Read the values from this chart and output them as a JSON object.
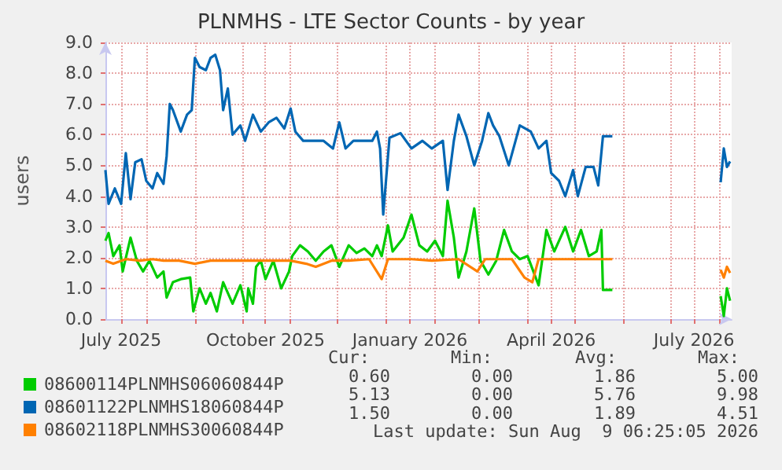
{
  "chart_data": {
    "type": "line",
    "title": "PLNMHS - LTE Sector Counts - by year",
    "ylabel": "users",
    "xlim": [
      "2025-07-06",
      "2026-08-09"
    ],
    "xticks": [
      {
        "value": "2025-08-01",
        "label": null
      },
      {
        "value": "2025-09-01",
        "label": null
      },
      {
        "value": "2025-10-01",
        "label": null
      },
      {
        "value": "2025-11-01",
        "label": null
      },
      {
        "value": "2025-12-01",
        "label": null
      },
      {
        "value": "2026-01-01",
        "label": null
      },
      {
        "value": "2026-02-01",
        "label": null
      },
      {
        "value": "2026-03-01",
        "label": null
      },
      {
        "value": "2026-04-01",
        "label": null
      },
      {
        "value": "2026-05-01",
        "label": null
      },
      {
        "value": "2026-06-01",
        "label": null
      },
      {
        "value": "2026-07-01",
        "label": null
      },
      {
        "value": "2026-08-01",
        "label": null
      },
      {
        "value": "2025-07-16",
        "label": "July 2025"
      },
      {
        "value": "2025-10-16",
        "label": "October 2025"
      },
      {
        "value": "2026-01-16",
        "label": "January 2026"
      },
      {
        "value": "2026-04-16",
        "label": "April 2026"
      },
      {
        "value": "2026-07-16",
        "label": "July 2026"
      }
    ],
    "ylim": [
      0,
      9
    ],
    "yticks": [
      {
        "value": 0,
        "label": "0.0"
      },
      {
        "value": 1,
        "label": "1.0"
      },
      {
        "value": 2,
        "label": "2.0"
      },
      {
        "value": 3,
        "label": "3.0"
      },
      {
        "value": 4,
        "label": "4.0"
      },
      {
        "value": 5,
        "label": "5.0"
      },
      {
        "value": 6,
        "label": "6.0"
      },
      {
        "value": 7,
        "label": "7.0"
      },
      {
        "value": 8,
        "label": "8.0"
      },
      {
        "value": 9,
        "label": "9.0"
      }
    ],
    "grid": true,
    "legend": "bottom left",
    "series": [
      {
        "name": "08600114PLNMHS06060844P",
        "color": "#00cc00",
        "x": [
          "2025-07-06",
          "2025-07-08",
          "2025-07-11",
          "2025-07-15",
          "2025-07-17",
          "2025-07-22",
          "2025-07-26",
          "2025-07-30",
          "2025-08-03",
          "2025-08-08",
          "2025-08-12",
          "2025-08-14",
          "2025-08-18",
          "2025-08-23",
          "2025-08-29",
          "2025-08-31",
          "2025-09-04",
          "2025-09-08",
          "2025-09-11",
          "2025-09-15",
          "2025-09-19",
          "2025-09-25",
          "2025-09-30",
          "2025-10-04",
          "2025-10-05",
          "2025-10-08",
          "2025-10-10",
          "2025-10-13",
          "2025-10-16",
          "2025-10-21",
          "2025-10-26",
          "2025-10-31",
          "2025-11-02",
          "2025-11-07",
          "2025-11-12",
          "2025-11-17",
          "2025-11-22",
          "2025-11-27",
          "2025-12-02",
          "2025-12-08",
          "2025-12-13",
          "2025-12-18",
          "2025-12-23",
          "2025-12-26",
          "2025-12-29",
          "2026-01-02",
          "2026-01-05",
          "2026-01-12",
          "2026-01-17",
          "2026-01-22",
          "2026-01-27",
          "2026-02-01",
          "2026-02-06",
          "2026-02-09",
          "2026-02-13",
          "2026-02-16",
          "2026-02-21",
          "2026-02-26",
          "2026-03-02",
          "2026-03-07",
          "2026-03-12",
          "2026-03-17",
          "2026-03-22",
          "2026-03-27",
          "2026-04-01",
          "2026-04-08",
          "2026-04-13",
          "2026-04-18",
          "2026-04-25",
          "2026-04-30",
          "2026-05-05",
          "2026-05-10",
          "2026-05-15",
          "2026-05-18",
          "2026-05-19",
          "2026-05-25",
          "2026-06-30",
          "2026-08-02",
          "2026-08-04",
          "2026-08-06",
          "2026-08-08"
        ],
        "values": [
          2.55,
          2.8,
          2.05,
          2.4,
          1.55,
          2.65,
          1.9,
          1.55,
          1.9,
          1.35,
          1.55,
          0.7,
          1.2,
          1.3,
          1.35,
          0.25,
          1.0,
          0.5,
          0.85,
          0.25,
          1.2,
          0.5,
          1.1,
          0.25,
          1.0,
          0.5,
          1.7,
          1.9,
          1.3,
          1.9,
          1.0,
          1.55,
          2.05,
          2.4,
          2.2,
          1.9,
          2.2,
          2.4,
          1.7,
          2.4,
          2.15,
          2.3,
          2.05,
          2.4,
          2.05,
          3.05,
          2.2,
          2.65,
          3.4,
          2.4,
          2.2,
          2.55,
          2.05,
          3.85,
          2.65,
          1.35,
          2.2,
          3.6,
          1.9,
          1.45,
          1.9,
          2.9,
          2.2,
          1.95,
          2.05,
          1.1,
          2.9,
          2.2,
          3.0,
          2.2,
          2.9,
          2.05,
          2.2,
          2.9,
          0.95,
          0.95,
          null,
          0.75,
          0.1,
          1.0,
          0.6
        ]
      },
      {
        "name": "08601122PLNMHS18060844P",
        "color": "#0066b3",
        "x": [
          "2025-07-06",
          "2025-07-08",
          "2025-07-12",
          "2025-07-16",
          "2025-07-19",
          "2025-07-22",
          "2025-07-25",
          "2025-07-29",
          "2025-08-01",
          "2025-08-05",
          "2025-08-08",
          "2025-08-12",
          "2025-08-14",
          "2025-08-16",
          "2025-08-18",
          "2025-08-23",
          "2025-08-27",
          "2025-08-30",
          "2025-09-01",
          "2025-09-04",
          "2025-09-08",
          "2025-09-11",
          "2025-09-14",
          "2025-09-17",
          "2025-09-19",
          "2025-09-22",
          "2025-09-25",
          "2025-09-30",
          "2025-10-03",
          "2025-10-08",
          "2025-10-13",
          "2025-10-18",
          "2025-10-23",
          "2025-10-28",
          "2025-11-01",
          "2025-11-04",
          "2025-11-09",
          "2025-11-16",
          "2025-11-22",
          "2025-11-28",
          "2025-12-02",
          "2025-12-06",
          "2025-12-11",
          "2025-12-18",
          "2025-12-23",
          "2025-12-26",
          "2025-12-28",
          "2025-12-30",
          "2026-01-03",
          "2026-01-10",
          "2026-01-17",
          "2026-01-24",
          "2026-01-30",
          "2026-02-06",
          "2026-02-09",
          "2026-02-13",
          "2026-02-16",
          "2026-02-21",
          "2026-02-26",
          "2026-03-03",
          "2026-03-07",
          "2026-03-10",
          "2026-03-14",
          "2026-03-20",
          "2026-03-27",
          "2026-04-03",
          "2026-04-08",
          "2026-04-13",
          "2026-04-16",
          "2026-04-21",
          "2026-04-25",
          "2026-04-30",
          "2026-05-03",
          "2026-05-08",
          "2026-05-13",
          "2026-05-16",
          "2026-05-19",
          "2026-05-25",
          "2026-06-30",
          "2026-08-02",
          "2026-08-04",
          "2026-08-06",
          "2026-08-08"
        ],
        "values": [
          4.85,
          3.75,
          4.25,
          3.75,
          5.4,
          3.9,
          5.1,
          5.2,
          4.5,
          4.25,
          4.75,
          4.4,
          5.3,
          7.0,
          6.8,
          6.1,
          6.65,
          6.8,
          8.5,
          8.2,
          8.1,
          8.5,
          8.6,
          8.1,
          6.8,
          7.5,
          6.0,
          6.3,
          5.8,
          6.65,
          6.1,
          6.4,
          6.55,
          6.2,
          6.85,
          6.1,
          5.8,
          5.8,
          5.8,
          5.55,
          6.4,
          5.55,
          5.8,
          5.8,
          5.8,
          6.1,
          5.55,
          3.4,
          5.9,
          6.05,
          5.55,
          5.8,
          5.55,
          5.8,
          4.2,
          5.8,
          6.65,
          5.95,
          5.0,
          5.8,
          6.7,
          6.3,
          5.95,
          5.0,
          6.3,
          6.1,
          5.55,
          5.8,
          4.75,
          4.5,
          4.0,
          4.85,
          4.0,
          4.95,
          4.95,
          4.35,
          5.95,
          5.95,
          null,
          4.45,
          5.55,
          4.95,
          5.13
        ]
      },
      {
        "name": "08602118PLNMHS30060844P",
        "color": "#ff8000",
        "x": [
          "2025-07-06",
          "2025-07-11",
          "2025-07-19",
          "2025-07-28",
          "2025-08-05",
          "2025-08-12",
          "2025-08-22",
          "2025-09-01",
          "2025-09-11",
          "2025-09-21",
          "2025-10-02",
          "2025-10-12",
          "2025-10-21",
          "2025-11-01",
          "2025-11-11",
          "2025-11-17",
          "2025-11-27",
          "2025-12-08",
          "2025-12-21",
          "2025-12-29",
          "2026-01-02",
          "2026-01-17",
          "2026-01-30",
          "2026-02-16",
          "2026-02-28",
          "2026-03-05",
          "2026-03-22",
          "2026-03-30",
          "2026-04-04",
          "2026-04-08",
          "2026-04-25",
          "2026-05-11",
          "2026-05-25",
          "2026-06-30",
          "2026-08-02",
          "2026-08-04",
          "2026-08-06",
          "2026-08-08"
        ],
        "values": [
          1.9,
          1.8,
          1.95,
          1.9,
          1.95,
          1.9,
          1.9,
          1.8,
          1.9,
          1.9,
          1.9,
          1.9,
          1.9,
          1.9,
          1.8,
          1.7,
          1.9,
          1.9,
          1.95,
          1.3,
          1.95,
          1.95,
          1.9,
          1.95,
          1.55,
          1.95,
          1.95,
          1.35,
          1.2,
          1.95,
          1.95,
          1.95,
          1.95,
          null,
          1.6,
          1.35,
          1.7,
          1.5
        ]
      }
    ],
    "annotations": [
      "Cur:",
      "Min:",
      "Avg:",
      "Max:",
      "0.60",
      "0.00",
      "1.86",
      "5.00",
      "5.13",
      "0.00",
      "5.76",
      "9.98",
      "1.50",
      "0.00",
      "1.89",
      "4.51",
      "Last update: Sun Aug  9 06:25:05 2026"
    ]
  }
}
